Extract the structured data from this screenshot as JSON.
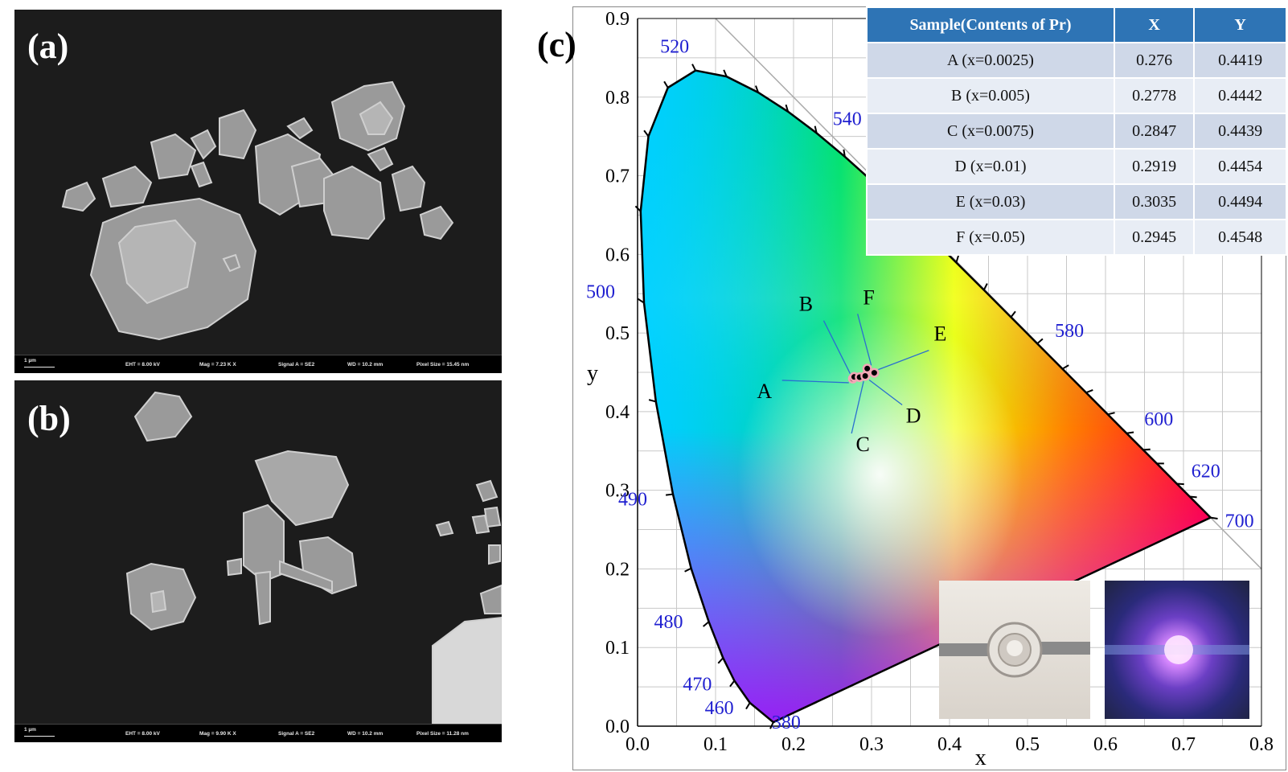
{
  "panels": {
    "a": {
      "label": "(a)",
      "scale_label": "1 µm",
      "eht": "EHT =  8.00 kV",
      "mag": "Mag =  7.23 K X",
      "signal": "Signal A = SE2",
      "wd": "WD = 10.2 mm",
      "pixel": "Pixel Size = 15.45 nm"
    },
    "b": {
      "label": "(b)",
      "scale_label": "1 µm",
      "eht": "EHT =  8.00 kV",
      "mag": "Mag =  9.90 K X",
      "signal": "Signal A = SE2",
      "wd": "WD = 10.2 mm",
      "pixel": "Pixel Size = 11.28 nm"
    },
    "c": {
      "label": "(c)"
    }
  },
  "table": {
    "headers": [
      "Sample(Contents of Pr)",
      "X",
      "Y"
    ],
    "rows": [
      [
        "A (x=0.0025)",
        "0.276",
        "0.4419"
      ],
      [
        "B (x=0.005)",
        "0.2778",
        "0.4442"
      ],
      [
        "C (x=0.0075)",
        "0.2847",
        "0.4439"
      ],
      [
        "D (x=0.01)",
        "0.2919",
        "0.4454"
      ],
      [
        "E (x=0.03)",
        "0.3035",
        "0.4494"
      ],
      [
        "F (x=0.05)",
        "0.2945",
        "0.4548"
      ]
    ],
    "header_color": "#2e74b5"
  },
  "chart_data": {
    "type": "scatter",
    "xlabel": "x",
    "ylabel": "y",
    "xlim": [
      0.0,
      0.8
    ],
    "ylim": [
      0.0,
      0.9
    ],
    "xticks": [
      "0.0",
      "0.1",
      "0.2",
      "0.3",
      "0.4",
      "0.5",
      "0.6",
      "0.7",
      "0.8"
    ],
    "yticks": [
      "0.0",
      "0.1",
      "0.2",
      "0.3",
      "0.4",
      "0.5",
      "0.6",
      "0.7",
      "0.8",
      "0.9"
    ],
    "grid": true,
    "wavelength_labels": [
      {
        "text": "380",
        "x": 0.1741,
        "y": 0.005
      },
      {
        "text": "460",
        "x": 0.144,
        "y": 0.0297
      },
      {
        "text": "470",
        "x": 0.1241,
        "y": 0.0578
      },
      {
        "text": "480",
        "x": 0.0913,
        "y": 0.1327
      },
      {
        "text": "490",
        "x": 0.0454,
        "y": 0.295
      },
      {
        "text": "500",
        "x": 0.0082,
        "y": 0.5384
      },
      {
        "text": "520",
        "x": 0.0743,
        "y": 0.8338
      },
      {
        "text": "540",
        "x": 0.2296,
        "y": 0.7543
      },
      {
        "text": "580",
        "x": 0.5125,
        "y": 0.4866
      },
      {
        "text": "600",
        "x": 0.627,
        "y": 0.3725
      },
      {
        "text": "620",
        "x": 0.6915,
        "y": 0.3083
      },
      {
        "text": "700",
        "x": 0.7347,
        "y": 0.2653
      }
    ],
    "points": [
      {
        "name": "A",
        "x": 0.276,
        "y": 0.4419
      },
      {
        "name": "B",
        "x": 0.2778,
        "y": 0.4442
      },
      {
        "name": "C",
        "x": 0.2847,
        "y": 0.4439
      },
      {
        "name": "D",
        "x": 0.2919,
        "y": 0.4454
      },
      {
        "name": "E",
        "x": 0.3035,
        "y": 0.4494
      },
      {
        "name": "F",
        "x": 0.2945,
        "y": 0.4548
      }
    ],
    "point_color": "#f4a6b6",
    "label_color": "#1f1fd0"
  },
  "insets": {
    "photo1": "led-off-photo",
    "photo2": "led-on-photo"
  }
}
